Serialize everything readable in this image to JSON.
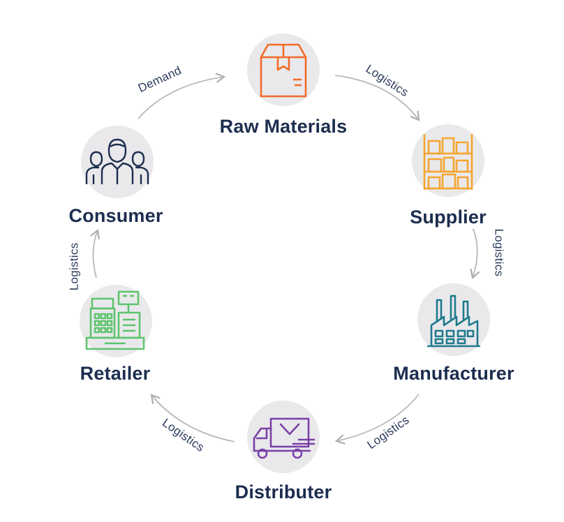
{
  "nodes": {
    "raw_materials": {
      "label": "Raw Materials",
      "icon": "box-icon",
      "color": "#f26b2a"
    },
    "supplier": {
      "label": "Supplier",
      "icon": "warehouse-shelf-icon",
      "color": "#f5a531"
    },
    "manufacturer": {
      "label": "Manufacturer",
      "icon": "factory-icon",
      "color": "#1f7a8c"
    },
    "distributer": {
      "label": "Distributer",
      "icon": "delivery-truck-icon",
      "color": "#7b3fa6"
    },
    "retailer": {
      "label": "Retailer",
      "icon": "cash-register-icon",
      "color": "#5fc46e"
    },
    "consumer": {
      "label": "Consumer",
      "icon": "people-icon",
      "color": "#1c2d4f"
    }
  },
  "edges": {
    "consumer_to_raw": "Demand",
    "raw_to_supplier": "Logistics",
    "supplier_to_manufacturer": "Logistics",
    "manufacturer_to_distributer": "Logistics",
    "distributer_to_retailer": "Logistics",
    "retailer_to_consumer": "Logistics"
  },
  "colors": {
    "label": "#1c2d4f",
    "circle": "#e9e9ec",
    "arrow": "#b8b8bc"
  }
}
